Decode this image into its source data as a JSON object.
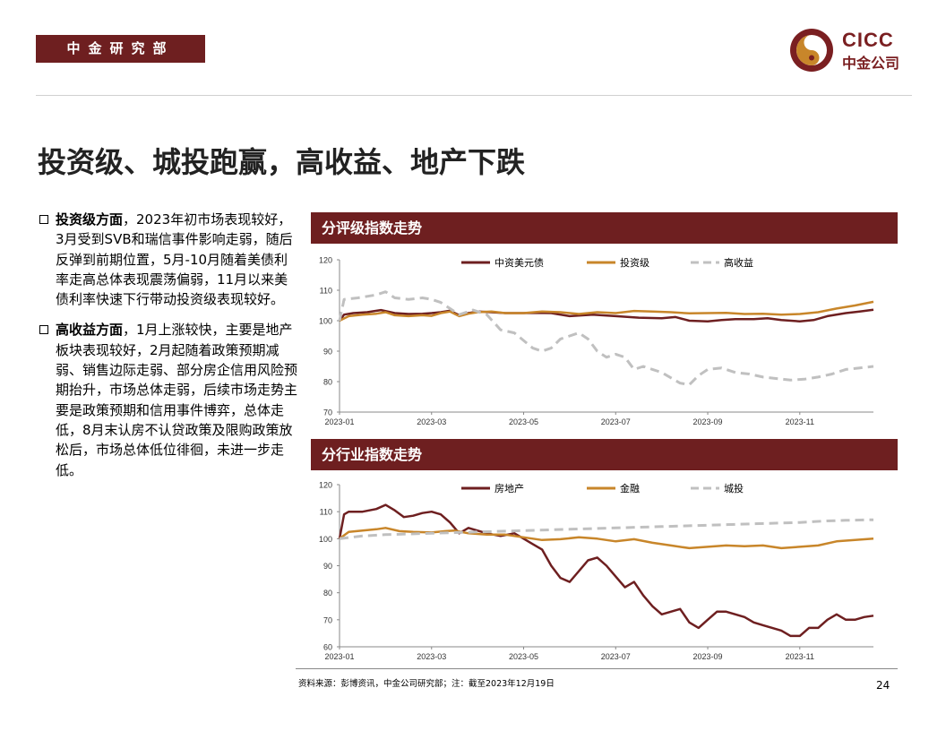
{
  "header": {
    "dept": "中金研究部",
    "logo_en": "CICC",
    "logo_cn": "中金公司"
  },
  "title": "投资级、城投跑赢，高收益、地产下跌",
  "bullets": [
    {
      "head": "投资级方面",
      "body": "，2023年初市场表现较好，3月受到SVB和瑞信事件影响走弱，随后反弹到前期位置，5月-10月随着美债利率走高总体表现震荡偏弱，11月以来美债利率快速下行带动投资级表现较好。"
    },
    {
      "head": "高收益方面",
      "body": "，1月上涨较快，主要是地产板块表现较好，2月起随着政策预期减弱、销售边际走弱、部分房企信用风险预期抬升，市场总体走弱，后续市场走势主要是政策预期和信用事件博弈，总体走低，8月末认房不认贷政策及限购政策放松后，市场总体低位徘徊，未进一步走低。"
    }
  ],
  "panels": [
    "分评级指数走势",
    "分行业指数走势"
  ],
  "chart_data": [
    {
      "type": "line",
      "title": "分评级指数走势",
      "x_ticks": [
        "2023-01",
        "2023-03",
        "2023-05",
        "2023-07",
        "2023-09",
        "2023-11"
      ],
      "x_tick_pos": [
        0,
        2,
        4,
        6,
        8,
        10
      ],
      "x_range": [
        0,
        11.6
      ],
      "ylim": [
        70,
        120
      ],
      "y_ticks": [
        70,
        80,
        90,
        100,
        110,
        120
      ],
      "legend_position": "top",
      "series": [
        {
          "name": "中资美元债",
          "color": "#6e1f20",
          "dash": "",
          "width": 2.5,
          "points": [
            [
              0,
              100
            ],
            [
              0.1,
              102
            ],
            [
              0.3,
              102.5
            ],
            [
              0.6,
              102.8
            ],
            [
              0.9,
              103.5
            ],
            [
              1.2,
              102.5
            ],
            [
              1.5,
              102.2
            ],
            [
              1.8,
              102.3
            ],
            [
              2.0,
              102.5
            ],
            [
              2.2,
              102.8
            ],
            [
              2.4,
              103.3
            ],
            [
              2.6,
              101.8
            ],
            [
              2.8,
              102.5
            ],
            [
              3.0,
              103
            ],
            [
              3.3,
              102.8
            ],
            [
              3.6,
              102.5
            ],
            [
              4.0,
              102.5
            ],
            [
              4.3,
              102.6
            ],
            [
              4.6,
              102.5
            ],
            [
              5.0,
              101.5
            ],
            [
              5.5,
              102
            ],
            [
              6.0,
              101.5
            ],
            [
              6.5,
              101
            ],
            [
              7.0,
              100.8
            ],
            [
              7.3,
              101.2
            ],
            [
              7.6,
              100
            ],
            [
              8.0,
              99.8
            ],
            [
              8.3,
              100.2
            ],
            [
              8.6,
              100.5
            ],
            [
              9.0,
              100.5
            ],
            [
              9.3,
              100.8
            ],
            [
              9.6,
              100.2
            ],
            [
              10.0,
              99.8
            ],
            [
              10.3,
              100.2
            ],
            [
              10.6,
              101.5
            ],
            [
              11.0,
              102.5
            ],
            [
              11.3,
              103
            ],
            [
              11.6,
              103.6
            ]
          ]
        },
        {
          "name": "投资级",
          "color": "#c8862a",
          "dash": "",
          "width": 2.5,
          "points": [
            [
              0,
              100
            ],
            [
              0.2,
              101.5
            ],
            [
              0.5,
              102
            ],
            [
              0.8,
              102.3
            ],
            [
              1.0,
              102.8
            ],
            [
              1.2,
              101.8
            ],
            [
              1.5,
              101.5
            ],
            [
              1.8,
              101.8
            ],
            [
              2.0,
              101.6
            ],
            [
              2.2,
              102.5
            ],
            [
              2.4,
              103
            ],
            [
              2.6,
              101.5
            ],
            [
              2.8,
              102.3
            ],
            [
              3.0,
              102.8
            ],
            [
              3.3,
              103
            ],
            [
              3.6,
              102.5
            ],
            [
              4.0,
              102.5
            ],
            [
              4.4,
              103
            ],
            [
              4.8,
              102.8
            ],
            [
              5.2,
              102.2
            ],
            [
              5.6,
              102.8
            ],
            [
              6.0,
              102.5
            ],
            [
              6.4,
              103.2
            ],
            [
              6.8,
              103
            ],
            [
              7.2,
              102.8
            ],
            [
              7.6,
              102.4
            ],
            [
              8.0,
              102.5
            ],
            [
              8.4,
              102.6
            ],
            [
              8.8,
              102.2
            ],
            [
              9.2,
              102.3
            ],
            [
              9.6,
              102
            ],
            [
              10.0,
              102.2
            ],
            [
              10.4,
              102.8
            ],
            [
              10.8,
              104
            ],
            [
              11.2,
              105
            ],
            [
              11.6,
              106.2
            ]
          ]
        },
        {
          "name": "高收益",
          "color": "#c0c0c0",
          "dash": "10 6",
          "width": 3,
          "points": [
            [
              0,
              100
            ],
            [
              0.1,
              107
            ],
            [
              0.4,
              107.5
            ],
            [
              0.8,
              108.5
            ],
            [
              1.0,
              109.5
            ],
            [
              1.2,
              107.5
            ],
            [
              1.5,
              107
            ],
            [
              1.8,
              107.5
            ],
            [
              2.0,
              107
            ],
            [
              2.2,
              106
            ],
            [
              2.4,
              104
            ],
            [
              2.6,
              102
            ],
            [
              2.9,
              103.5
            ],
            [
              3.2,
              102
            ],
            [
              3.5,
              97
            ],
            [
              3.8,
              96
            ],
            [
              4.2,
              91
            ],
            [
              4.4,
              90
            ],
            [
              4.6,
              91
            ],
            [
              4.8,
              94
            ],
            [
              5.0,
              95
            ],
            [
              5.2,
              96
            ],
            [
              5.4,
              94
            ],
            [
              5.6,
              90
            ],
            [
              5.8,
              88
            ],
            [
              6.0,
              89
            ],
            [
              6.2,
              88
            ],
            [
              6.4,
              84
            ],
            [
              6.6,
              85
            ],
            [
              6.8,
              84
            ],
            [
              7.0,
              83
            ],
            [
              7.4,
              79.5
            ],
            [
              7.6,
              79
            ],
            [
              7.8,
              82
            ],
            [
              8.0,
              84
            ],
            [
              8.3,
              84.5
            ],
            [
              8.6,
              83
            ],
            [
              8.9,
              82.5
            ],
            [
              9.2,
              81.5
            ],
            [
              9.5,
              81
            ],
            [
              9.8,
              80.5
            ],
            [
              10.1,
              80.8
            ],
            [
              10.4,
              81.5
            ],
            [
              10.7,
              82.5
            ],
            [
              11.0,
              84
            ],
            [
              11.3,
              84.5
            ],
            [
              11.6,
              85
            ]
          ]
        }
      ]
    },
    {
      "type": "line",
      "title": "分行业指数走势",
      "x_ticks": [
        "2023-01",
        "2023-03",
        "2023-05",
        "2023-07",
        "2023-09",
        "2023-11"
      ],
      "x_tick_pos": [
        0,
        2,
        4,
        6,
        8,
        10
      ],
      "x_range": [
        0,
        11.6
      ],
      "ylim": [
        60,
        120
      ],
      "y_ticks": [
        60,
        70,
        80,
        90,
        100,
        110,
        120
      ],
      "legend_position": "top",
      "series": [
        {
          "name": "房地产",
          "color": "#6e1f20",
          "dash": "",
          "width": 2.5,
          "points": [
            [
              0,
              100
            ],
            [
              0.1,
              109
            ],
            [
              0.2,
              110
            ],
            [
              0.5,
              110
            ],
            [
              0.8,
              111
            ],
            [
              1.0,
              112.5
            ],
            [
              1.2,
              110.5
            ],
            [
              1.4,
              108
            ],
            [
              1.6,
              108.5
            ],
            [
              1.8,
              109.5
            ],
            [
              2.0,
              110
            ],
            [
              2.2,
              109
            ],
            [
              2.4,
              106
            ],
            [
              2.6,
              102
            ],
            [
              2.8,
              104
            ],
            [
              3.0,
              103
            ],
            [
              3.2,
              102
            ],
            [
              3.5,
              101
            ],
            [
              3.8,
              102
            ],
            [
              4.0,
              100
            ],
            [
              4.2,
              98
            ],
            [
              4.4,
              96
            ],
            [
              4.6,
              90
            ],
            [
              4.8,
              85.5
            ],
            [
              5.0,
              84
            ],
            [
              5.2,
              88
            ],
            [
              5.4,
              92
            ],
            [
              5.6,
              93
            ],
            [
              5.8,
              90
            ],
            [
              6.0,
              86
            ],
            [
              6.2,
              82
            ],
            [
              6.4,
              84
            ],
            [
              6.6,
              79
            ],
            [
              6.8,
              75
            ],
            [
              7.0,
              72
            ],
            [
              7.2,
              73
            ],
            [
              7.4,
              74
            ],
            [
              7.6,
              69
            ],
            [
              7.8,
              67
            ],
            [
              8.0,
              70
            ],
            [
              8.2,
              73
            ],
            [
              8.4,
              73
            ],
            [
              8.6,
              72
            ],
            [
              8.8,
              71
            ],
            [
              9.0,
              69
            ],
            [
              9.2,
              68
            ],
            [
              9.4,
              67
            ],
            [
              9.6,
              66
            ],
            [
              9.8,
              64
            ],
            [
              10.0,
              64
            ],
            [
              10.2,
              67
            ],
            [
              10.4,
              67
            ],
            [
              10.6,
              70
            ],
            [
              10.8,
              72
            ],
            [
              11.0,
              70
            ],
            [
              11.2,
              70
            ],
            [
              11.4,
              71
            ],
            [
              11.6,
              71.5
            ]
          ]
        },
        {
          "name": "金融",
          "color": "#c8862a",
          "dash": "",
          "width": 2.5,
          "points": [
            [
              0,
              100
            ],
            [
              0.2,
              102.5
            ],
            [
              0.5,
              103
            ],
            [
              0.8,
              103.5
            ],
            [
              1.0,
              104
            ],
            [
              1.3,
              102.8
            ],
            [
              1.6,
              102.5
            ],
            [
              2.0,
              102.3
            ],
            [
              2.3,
              102.8
            ],
            [
              2.5,
              103
            ],
            [
              2.8,
              102
            ],
            [
              3.2,
              101.5
            ],
            [
              3.6,
              101.5
            ],
            [
              4.0,
              100.5
            ],
            [
              4.4,
              99.5
            ],
            [
              4.8,
              99.8
            ],
            [
              5.2,
              100.5
            ],
            [
              5.6,
              100
            ],
            [
              6.0,
              99
            ],
            [
              6.4,
              99.8
            ],
            [
              6.8,
              98.5
            ],
            [
              7.2,
              97.5
            ],
            [
              7.6,
              96.5
            ],
            [
              8.0,
              97
            ],
            [
              8.4,
              97.5
            ],
            [
              8.8,
              97.2
            ],
            [
              9.2,
              97.5
            ],
            [
              9.6,
              96.5
            ],
            [
              10.0,
              97
            ],
            [
              10.4,
              97.5
            ],
            [
              10.8,
              99
            ],
            [
              11.2,
              99.5
            ],
            [
              11.6,
              100
            ]
          ]
        },
        {
          "name": "城投",
          "color": "#c0c0c0",
          "dash": "10 6",
          "width": 3,
          "points": [
            [
              0,
              100
            ],
            [
              0.5,
              101
            ],
            [
              1.0,
              101.5
            ],
            [
              2.0,
              102
            ],
            [
              3.0,
              102.5
            ],
            [
              4.0,
              103
            ],
            [
              5.0,
              103.5
            ],
            [
              6.0,
              104
            ],
            [
              7.0,
              104.5
            ],
            [
              8.0,
              105
            ],
            [
              9.0,
              105.5
            ],
            [
              10.0,
              106
            ],
            [
              10.5,
              106.5
            ],
            [
              11.0,
              106.8
            ],
            [
              11.6,
              107
            ]
          ]
        }
      ]
    }
  ],
  "footer": {
    "source": "资料来源：彭博资讯，中金公司研究部；注：截至2023年12月19日",
    "page": "24"
  }
}
